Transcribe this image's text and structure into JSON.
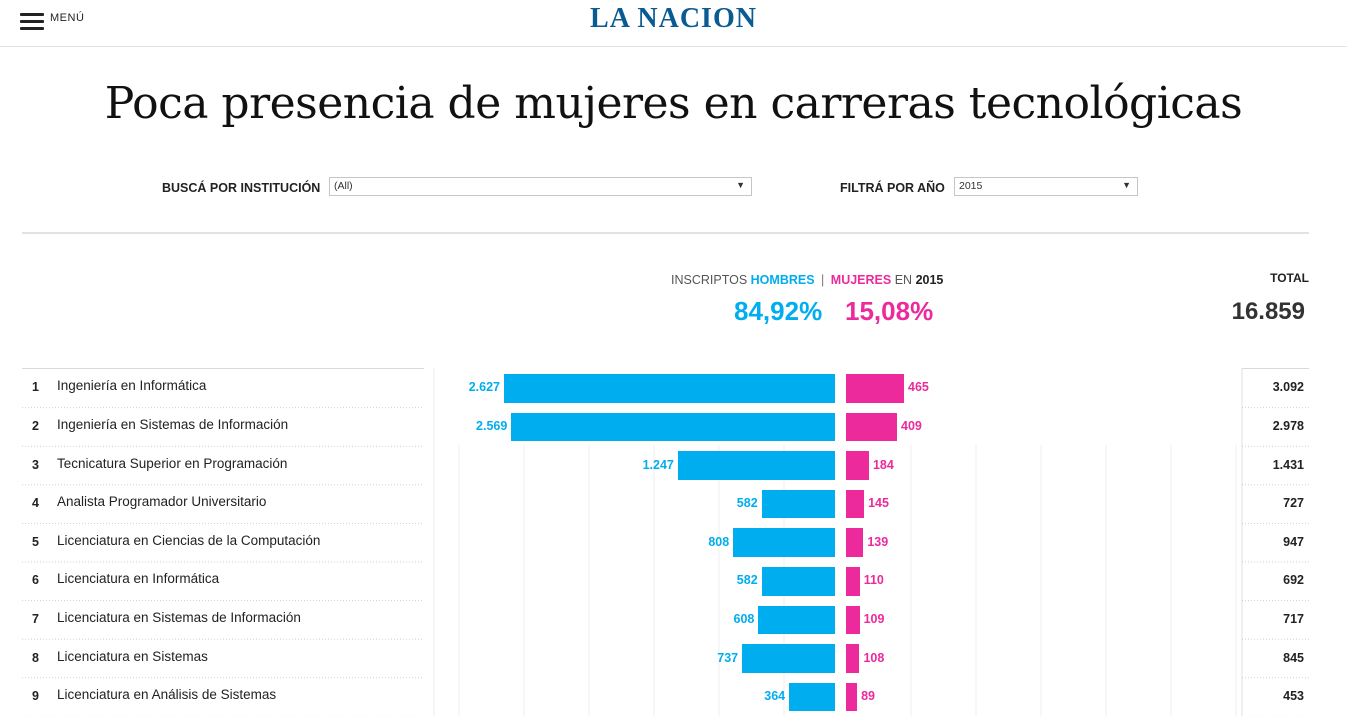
{
  "header": {
    "menu_label": "MENÚ",
    "logo": "LA NACION"
  },
  "title": "Poca presencia de mujeres en carreras tecnológicas",
  "filters": {
    "institution_label": "BUSCÁ POR INSTITUCIÓN",
    "institution_value": "(All)",
    "year_label": "FILTRÁ POR AÑO",
    "year_value": "2015"
  },
  "summary": {
    "prefix": "INSCRIPTOS",
    "men_label": "HOMBRES",
    "separator": "|",
    "women_label": "MUJERES",
    "in_label": "EN",
    "year": "2015",
    "men_pct": "84,92%",
    "women_pct": "15,08%",
    "total_label": "TOTAL",
    "total_value": "16.859"
  },
  "colors": {
    "men": "#00aeef",
    "women": "#ec2a9b"
  },
  "chart_data": {
    "type": "bar",
    "title": "Poca presencia de mujeres en carreras tecnológicas",
    "series": [
      {
        "name": "HOMBRES",
        "values": [
          2627,
          2569,
          1247,
          582,
          808,
          582,
          608,
          737,
          364
        ]
      },
      {
        "name": "MUJERES",
        "values": [
          465,
          409,
          184,
          145,
          139,
          110,
          109,
          108,
          89
        ]
      }
    ]
  },
  "rows": [
    {
      "rank": "1",
      "name": "Ingeniería en Informática",
      "men": 2627,
      "women": 465,
      "men_label": "2.627",
      "women_label": "465",
      "total": "3.092"
    },
    {
      "rank": "2",
      "name": "Ingeniería en Sistemas de Información",
      "men": 2569,
      "women": 409,
      "men_label": "2.569",
      "women_label": "409",
      "total": "2.978"
    },
    {
      "rank": "3",
      "name": "Tecnicatura Superior en Programación",
      "men": 1247,
      "women": 184,
      "men_label": "1.247",
      "women_label": "184",
      "total": "1.431"
    },
    {
      "rank": "4",
      "name": "Analista Programador Universitario",
      "men": 582,
      "women": 145,
      "men_label": "582",
      "women_label": "145",
      "total": "727"
    },
    {
      "rank": "5",
      "name": "Licenciatura en Ciencias de la Computación",
      "men": 808,
      "women": 139,
      "men_label": "808",
      "women_label": "139",
      "total": "947"
    },
    {
      "rank": "6",
      "name": "Licenciatura en Informática",
      "men": 582,
      "women": 110,
      "men_label": "582",
      "women_label": "110",
      "total": "692"
    },
    {
      "rank": "7",
      "name": "Licenciatura en Sistemas de Información",
      "men": 608,
      "women": 109,
      "men_label": "608",
      "women_label": "109",
      "total": "717"
    },
    {
      "rank": "8",
      "name": "Licenciatura en Sistemas",
      "men": 737,
      "women": 108,
      "men_label": "737",
      "women_label": "108",
      "total": "845"
    },
    {
      "rank": "9",
      "name": "Licenciatura en Análisis de Sistemas",
      "men": 364,
      "women": 89,
      "men_label": "364",
      "women_label": "89",
      "total": "453"
    }
  ]
}
